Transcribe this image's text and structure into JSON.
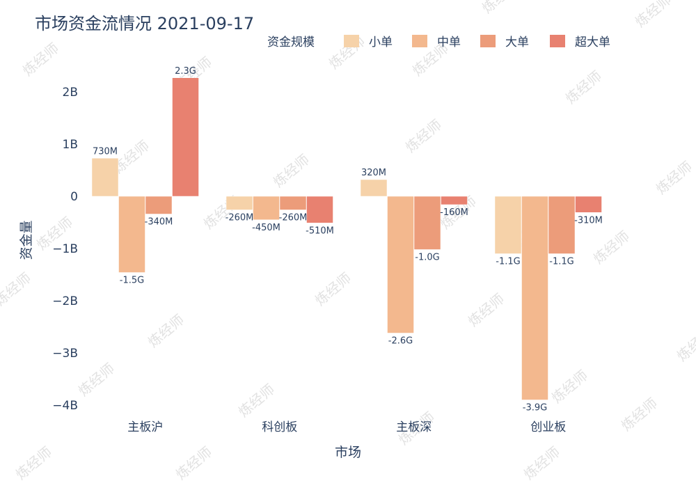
{
  "watermark": "炼经师",
  "chart_data": {
    "type": "bar",
    "title": "市场资金流情况 2021-09-17",
    "xlabel": "市场",
    "ylabel": "资金量",
    "categories": [
      "主板沪",
      "科创板",
      "主板深",
      "创业板"
    ],
    "legend_title": "资金规模",
    "legend_position": "top-right",
    "ylim": [
      -4.3,
      2.7
    ],
    "yticks": [
      2,
      1,
      0,
      -1,
      -2,
      -3,
      -4
    ],
    "ytick_labels": [
      "2B",
      "1B",
      "0",
      "−1B",
      "−2B",
      "−3B",
      "−4B"
    ],
    "series": [
      {
        "name": "小单",
        "color": "#f6d2a9",
        "values": [
          0.73,
          -0.26,
          0.32,
          -1.1
        ],
        "labels": [
          "730M",
          "-260M",
          "320M",
          "-1.1G"
        ]
      },
      {
        "name": "中单",
        "color": "#f3b88e",
        "values": [
          -1.46,
          -0.45,
          -2.62,
          -3.9
        ],
        "labels": [
          "-1.5G",
          "-450M",
          "-2.6G",
          "-3.9G"
        ]
      },
      {
        "name": "大单",
        "color": "#ec9c7a",
        "values": [
          -0.34,
          -0.26,
          -1.02,
          -1.1
        ],
        "labels": [
          "-340M",
          "-260M",
          "-1.0G",
          "-1.1G"
        ]
      },
      {
        "name": "超大单",
        "color": "#e88170",
        "values": [
          2.27,
          -0.51,
          -0.16,
          -0.31
        ],
        "labels": [
          "2.3G",
          "-510M",
          "-160M",
          "-310M"
        ]
      }
    ]
  }
}
